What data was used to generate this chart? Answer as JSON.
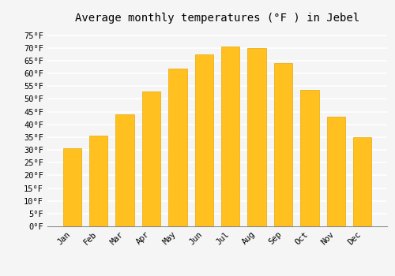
{
  "title": "Average monthly temperatures (°F ) in Jebel",
  "months": [
    "Jan",
    "Feb",
    "Mar",
    "Apr",
    "May",
    "Jun",
    "Jul",
    "Aug",
    "Sep",
    "Oct",
    "Nov",
    "Dec"
  ],
  "values": [
    30.5,
    35.5,
    44,
    53,
    62,
    67.5,
    70.5,
    70,
    64,
    53.5,
    43,
    35
  ],
  "bar_color": "#FFC020",
  "bar_edge_color": "#E8A800",
  "ylim": [
    0,
    78
  ],
  "yticks": [
    0,
    5,
    10,
    15,
    20,
    25,
    30,
    35,
    40,
    45,
    50,
    55,
    60,
    65,
    70,
    75
  ],
  "ytick_labels": [
    "0°F",
    "5°F",
    "10°F",
    "15°F",
    "20°F",
    "25°F",
    "30°F",
    "35°F",
    "40°F",
    "45°F",
    "50°F",
    "55°F",
    "60°F",
    "65°F",
    "70°F",
    "75°F"
  ],
  "background_color": "#f5f5f5",
  "grid_color": "#ffffff",
  "title_fontsize": 10,
  "tick_fontsize": 7.5,
  "font_family": "monospace"
}
